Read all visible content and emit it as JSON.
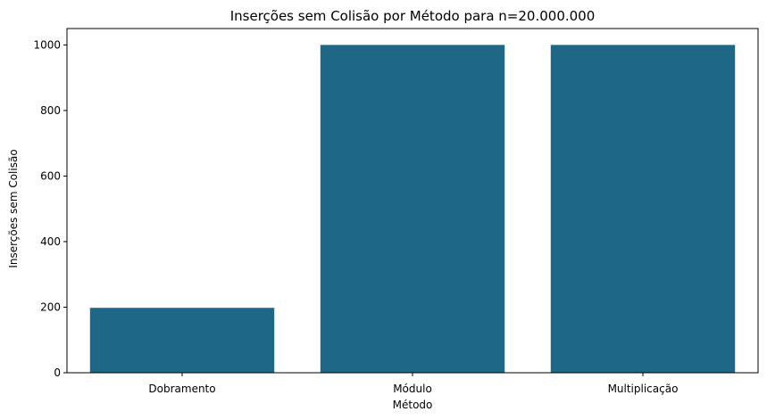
{
  "chart_data": {
    "type": "bar",
    "title": "Inserções sem Colisão por Método para n=20.000.000",
    "xlabel": "Método",
    "ylabel": "Inserções sem Colisão",
    "categories": [
      "Dobramento",
      "Módulo",
      "Multiplicação"
    ],
    "values": [
      198,
      1000,
      1000
    ],
    "ylim": [
      0,
      1050
    ],
    "yticks": [
      0,
      200,
      400,
      600,
      800,
      1000
    ],
    "grid": false,
    "bar_color": "#1f6786"
  }
}
